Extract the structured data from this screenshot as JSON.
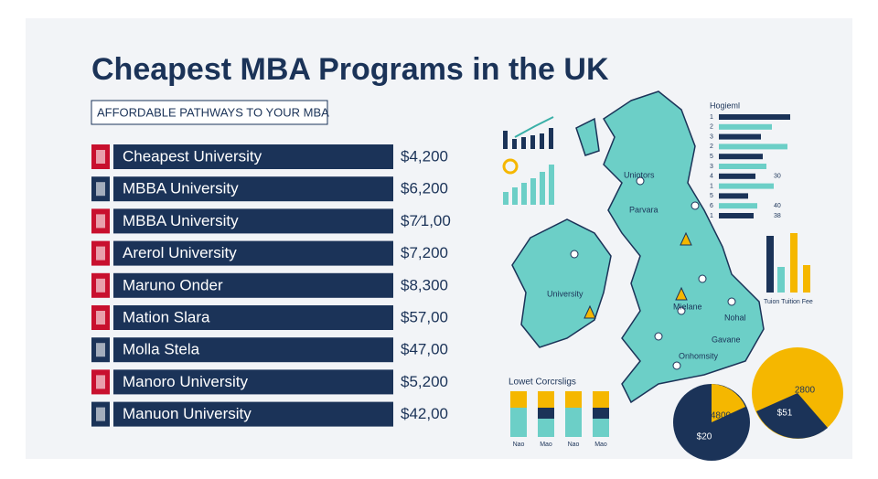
{
  "header": {
    "title": "Cheapest MBA Programs in the UK",
    "subtitle": "AFFORDABLE PATHWAYS TO YOUR MBA"
  },
  "rankings": [
    {
      "name": "Cheapest University",
      "fee": "$4,200"
    },
    {
      "name": "MBBA University",
      "fee": "$6,200"
    },
    {
      "name": "MBBA University",
      "fee": "$7⁄1,00"
    },
    {
      "name": "Arerol University",
      "fee": "$7,200"
    },
    {
      "name": "Maruno Onder",
      "fee": "$8,300"
    },
    {
      "name": "Mation Slara",
      "fee": "$57,00"
    },
    {
      "name": "Molla Stela",
      "fee": "$47,00"
    },
    {
      "name": "Manoro University",
      "fee": "$5,200"
    },
    {
      "name": "Manuon University",
      "fee": "$42,00"
    }
  ],
  "map_labels": [
    "Uniotors",
    "Parvara",
    "University",
    "Mielane",
    "Nohal",
    "Gavane",
    "Onhomsity"
  ],
  "legend_panel": {
    "title": "Hogieml",
    "rows": [
      {
        "label": "1"
      },
      {
        "label": "2"
      },
      {
        "label": "3"
      },
      {
        "label": "2"
      },
      {
        "label": "5"
      },
      {
        "label": "3"
      },
      {
        "label": "4",
        "value": "30"
      },
      {
        "label": "1"
      },
      {
        "label": "5"
      },
      {
        "label": "6",
        "value": "40"
      },
      {
        "label": "1",
        "value": "38"
      }
    ]
  },
  "bar_panel": {
    "caption": "Tuion Tuition Fee"
  },
  "lowest_panel": {
    "title": "Lowet Corcrsligs",
    "labels": [
      "Nao",
      "Mao",
      "Nao",
      "Mao"
    ]
  },
  "pie": {
    "labels": [
      "4800",
      "$20",
      "2800",
      "$51"
    ]
  }
}
